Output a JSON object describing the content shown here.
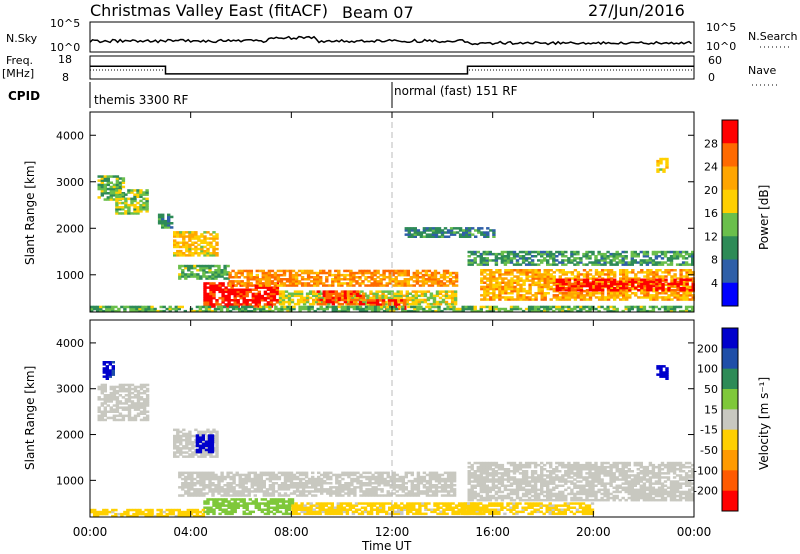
{
  "header": {
    "title": "Christmas Valley East (fitACF)",
    "beam": "Beam 07",
    "date": "27/Jun/2016"
  },
  "status_panels": {
    "nsky_label": "N.Sky",
    "nsearch_label": "N.Search",
    "nsky_ticks": [
      "10^5",
      "10^0"
    ],
    "nsearch_ticks": [
      "10^5",
      "10^0"
    ],
    "freq_label": "Freq.",
    "freq_unit": "[MHz]",
    "freq_ticks": [
      "18",
      "8"
    ],
    "nave_label": "Nave",
    "nave_ticks": [
      "60",
      "0"
    ],
    "cpid_label": "CPID",
    "cpid_segments": [
      {
        "name": "themis 3300 RF",
        "start_hour": 0
      },
      {
        "name": "normal (fast) 151 RF",
        "start_hour": 12
      }
    ],
    "freq_mhz": [
      {
        "from_hour": 0,
        "to_hour": 3,
        "value": 13.5
      },
      {
        "from_hour": 3,
        "to_hour": 15,
        "value": 10.2
      },
      {
        "from_hour": 15,
        "to_hour": 24,
        "value": 13.5
      }
    ]
  },
  "chart_data": [
    {
      "type": "heatmap",
      "name": "power",
      "xlabel": "Time UT",
      "ylabel": "Slant Range [km]",
      "xlim": [
        0,
        24
      ],
      "ylim": [
        200,
        4500
      ],
      "x_tick_labels": [
        "00:00",
        "04:00",
        "08:00",
        "12:00",
        "16:00",
        "20:00",
        "00:00"
      ],
      "y_ticks": [
        1000,
        2000,
        3000,
        4000
      ],
      "colorbar": {
        "label": "Power [dB]",
        "tick_labels": [
          "4",
          "8",
          "12",
          "16",
          "20",
          "24",
          "28"
        ],
        "range": [
          0,
          30
        ],
        "colors": [
          "#0000ff",
          "#2f5fa8",
          "#2e8b57",
          "#6abf4b",
          "#ffd000",
          "#ffa500",
          "#ff6a00",
          "#ff0000"
        ]
      },
      "regions": [
        {
          "t": [
            0.3,
            1.3
          ],
          "r": [
            2600,
            3100
          ],
          "db": 12
        },
        {
          "t": [
            1.0,
            2.3
          ],
          "r": [
            2300,
            2800
          ],
          "db": 14
        },
        {
          "t": [
            2.7,
            3.3
          ],
          "r": [
            2000,
            2300
          ],
          "db": 10
        },
        {
          "t": [
            3.3,
            5.0
          ],
          "r": [
            1400,
            1900
          ],
          "db": 18
        },
        {
          "t": [
            3.5,
            5.5
          ],
          "r": [
            900,
            1200
          ],
          "db": 12
        },
        {
          "t": [
            4.5,
            7.5
          ],
          "r": [
            300,
            800
          ],
          "db": 28
        },
        {
          "t": [
            5.5,
            14.5
          ],
          "r": [
            750,
            1100
          ],
          "db": 22
        },
        {
          "t": [
            7.5,
            14.5
          ],
          "r": [
            350,
            650
          ],
          "db": 16
        },
        {
          "t": [
            9.0,
            10.8
          ],
          "r": [
            350,
            650
          ],
          "db": 26
        },
        {
          "t": [
            11.0,
            12.5
          ],
          "r": [
            250,
            450
          ],
          "db": 26
        },
        {
          "t": [
            12.5,
            16.0
          ],
          "r": [
            1800,
            2000
          ],
          "db": 8
        },
        {
          "t": [
            15.0,
            24.0
          ],
          "r": [
            1200,
            1500
          ],
          "db": 10
        },
        {
          "t": [
            15.5,
            24.0
          ],
          "r": [
            450,
            1100
          ],
          "db": 20
        },
        {
          "t": [
            18.5,
            24.0
          ],
          "r": [
            650,
            900
          ],
          "db": 28
        },
        {
          "t": [
            22.5,
            22.9
          ],
          "r": [
            3200,
            3500
          ],
          "db": 18
        },
        {
          "t": [
            0.0,
            24.0
          ],
          "r": [
            200,
            320
          ],
          "db": 12
        }
      ]
    },
    {
      "type": "heatmap",
      "name": "velocity",
      "xlabel": "Time UT",
      "ylabel": "Slant Range [km]",
      "xlim": [
        0,
        24
      ],
      "ylim": [
        200,
        4500
      ],
      "x_tick_labels": [
        "00:00",
        "04:00",
        "08:00",
        "12:00",
        "16:00",
        "20:00",
        "00:00"
      ],
      "y_ticks": [
        1000,
        2000,
        3000,
        4000
      ],
      "colorbar": {
        "label": "Velocity [m s⁻¹]",
        "tick_labels": [
          "200",
          "100",
          "50",
          "15",
          "-15",
          "-50",
          "-100",
          "-200"
        ],
        "range": [
          -250,
          250
        ],
        "colors": [
          "#0000cc",
          "#1f4fa8",
          "#2e8b57",
          "#7fc83a",
          "#c8c8c0",
          "#ffd000",
          "#ff9a00",
          "#ff5a00",
          "#ff0000"
        ]
      },
      "regions": [
        {
          "t": [
            0.3,
            2.3
          ],
          "r": [
            2300,
            3100
          ],
          "v": 0
        },
        {
          "t": [
            0.5,
            0.9
          ],
          "r": [
            3200,
            3600
          ],
          "v": 200
        },
        {
          "t": [
            3.3,
            5.0
          ],
          "r": [
            1500,
            2100
          ],
          "v": 0
        },
        {
          "t": [
            4.2,
            4.9
          ],
          "r": [
            1600,
            2000
          ],
          "v": 220
        },
        {
          "t": [
            3.5,
            14.5
          ],
          "r": [
            650,
            1150
          ],
          "v": 0
        },
        {
          "t": [
            4.5,
            8.0
          ],
          "r": [
            250,
            600
          ],
          "v": 60
        },
        {
          "t": [
            8.0,
            15.5
          ],
          "r": [
            250,
            500
          ],
          "v": -40
        },
        {
          "t": [
            15.0,
            24.0
          ],
          "r": [
            550,
            1400
          ],
          "v": 0
        },
        {
          "t": [
            14.5,
            20.0
          ],
          "r": [
            250,
            500
          ],
          "v": -40
        },
        {
          "t": [
            0.0,
            4.5
          ],
          "r": [
            200,
            350
          ],
          "v": -40
        },
        {
          "t": [
            22.5,
            22.9
          ],
          "r": [
            3200,
            3500
          ],
          "v": 220
        }
      ]
    }
  ]
}
